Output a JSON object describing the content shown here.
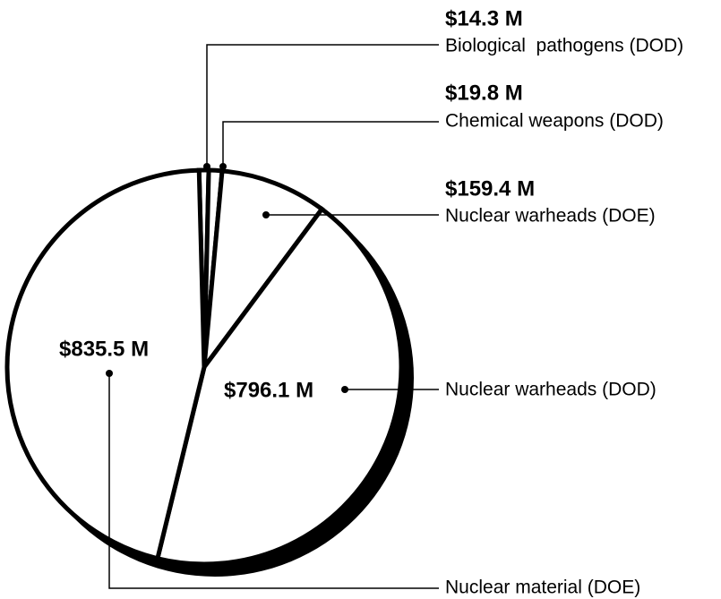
{
  "chart_data": {
    "type": "pie",
    "categories": [
      "Biological  pathogens (DOD)",
      "Chemical weapons (DOD)",
      "Nuclear warheads (DOE)",
      "Nuclear warheads (DOD)",
      "Nuclear material (DOE)"
    ],
    "values": [
      14.3,
      19.8,
      159.4,
      796.1,
      835.5
    ],
    "value_labels": [
      "$14.3 M",
      "$19.8 M",
      "$159.4 M",
      "$796.1 M",
      "$835.5 M"
    ],
    "color": "#ffffff"
  }
}
